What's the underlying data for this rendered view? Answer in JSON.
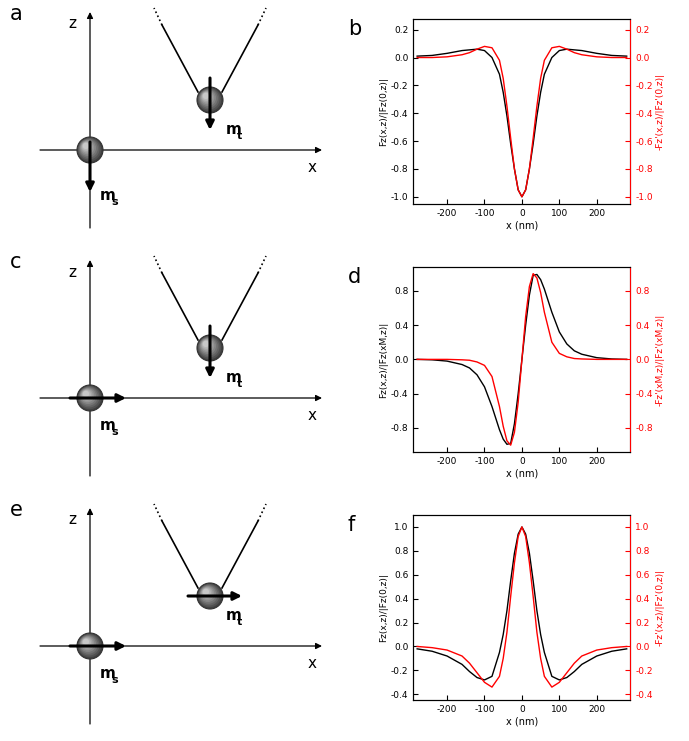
{
  "diagrams": [
    {
      "label": "a",
      "z_label": "z",
      "x_label": "x",
      "sample": {
        "label": "m",
        "subscript": "s",
        "direction": "down"
      },
      "tip": {
        "label": "m",
        "subscript": "t",
        "direction": "down"
      }
    },
    {
      "label": "c",
      "z_label": "z",
      "x_label": "x",
      "sample": {
        "label": "m",
        "subscript": "s",
        "direction": "right"
      },
      "tip": {
        "label": "m",
        "subscript": "t",
        "direction": "down"
      }
    },
    {
      "label": "e",
      "z_label": "z",
      "x_label": "x",
      "sample": {
        "label": "m",
        "subscript": "s",
        "direction": "right"
      },
      "tip": {
        "label": "m",
        "subscript": "t",
        "direction": "right"
      }
    }
  ],
  "chart_data": [
    {
      "type": "line",
      "panel_label": "b",
      "xlabel": "x (nm)",
      "ylabel": "Fz(x,z)/|Fz(0,z)|",
      "y2label": "-Fz'(x,z)/|Fz'(0,z)|",
      "xlim": [
        -290,
        290
      ],
      "xticks": [
        -200,
        -100,
        0,
        100,
        200
      ],
      "ylim": [
        -1.05,
        0.28
      ],
      "yticks": [
        -1.0,
        -0.8,
        -0.6,
        -0.4,
        -0.2,
        0.0,
        0.2
      ],
      "y2lim": [
        -1.05,
        0.28
      ],
      "y2ticks": [
        -1.0,
        -0.8,
        -0.6,
        -0.4,
        -0.2,
        0.0,
        0.2
      ],
      "x": [
        -280,
        -240,
        -200,
        -160,
        -140,
        -120,
        -100,
        -80,
        -60,
        -50,
        -40,
        -30,
        -20,
        -10,
        0,
        10,
        20,
        30,
        40,
        50,
        60,
        80,
        100,
        120,
        140,
        160,
        200,
        240,
        280
      ],
      "series": [
        {
          "color": "#000000",
          "values": [
            0.01,
            0.015,
            0.03,
            0.05,
            0.055,
            0.06,
            0.05,
            0.0,
            -0.12,
            -0.25,
            -0.42,
            -0.62,
            -0.8,
            -0.95,
            -1.0,
            -0.95,
            -0.8,
            -0.62,
            -0.42,
            -0.25,
            -0.12,
            0.0,
            0.05,
            0.06,
            0.055,
            0.05,
            0.03,
            0.015,
            0.01
          ]
        },
        {
          "color": "#ff0000",
          "axis": "y2",
          "values": [
            0.0,
            0.0,
            0.005,
            0.02,
            0.035,
            0.06,
            0.08,
            0.07,
            -0.02,
            -0.15,
            -0.35,
            -0.58,
            -0.8,
            -0.95,
            -1.0,
            -0.95,
            -0.8,
            -0.58,
            -0.35,
            -0.15,
            -0.02,
            0.07,
            0.08,
            0.06,
            0.035,
            0.02,
            0.005,
            0.0,
            0.0
          ]
        }
      ]
    },
    {
      "type": "line",
      "panel_label": "d",
      "xlabel": "x (nm)",
      "ylabel": "Fz(x,z)/|Fz(xM,z)|",
      "y2label": "-Fz'(xM,z)/|Fz'(xM,z)|",
      "xlim": [
        -290,
        290
      ],
      "xticks": [
        -200,
        -100,
        0,
        100,
        200
      ],
      "ylim": [
        -1.08,
        1.08
      ],
      "yticks": [
        -0.8,
        -0.4,
        0.0,
        0.4,
        0.8
      ],
      "y2lim": [
        -1.08,
        1.08
      ],
      "y2ticks": [
        -0.8,
        -0.4,
        0.0,
        0.4,
        0.8
      ],
      "x": [
        -280,
        -240,
        -200,
        -160,
        -140,
        -120,
        -100,
        -80,
        -60,
        -50,
        -40,
        -30,
        -20,
        -10,
        0,
        10,
        20,
        30,
        40,
        50,
        60,
        80,
        100,
        120,
        140,
        160,
        200,
        240,
        280
      ],
      "series": [
        {
          "color": "#000000",
          "values": [
            0.0,
            -0.005,
            -0.02,
            -0.06,
            -0.1,
            -0.18,
            -0.32,
            -0.55,
            -0.82,
            -0.93,
            -0.99,
            -0.98,
            -0.75,
            -0.4,
            0.0,
            0.4,
            0.75,
            0.98,
            0.99,
            0.93,
            0.82,
            0.55,
            0.32,
            0.18,
            0.1,
            0.06,
            0.02,
            0.005,
            0.0
          ]
        },
        {
          "color": "#ff0000",
          "axis": "y2",
          "values": [
            0.0,
            0.0,
            0.0,
            -0.005,
            -0.01,
            -0.03,
            -0.07,
            -0.2,
            -0.55,
            -0.78,
            -0.95,
            -1.0,
            -0.85,
            -0.5,
            0.0,
            0.5,
            0.85,
            1.0,
            0.95,
            0.78,
            0.55,
            0.2,
            0.07,
            0.03,
            0.01,
            0.005,
            0.0,
            0.0,
            0.0
          ]
        }
      ]
    },
    {
      "type": "line",
      "panel_label": "f",
      "xlabel": "x (nm)",
      "ylabel": "Fz(x,z)/|Fz(0,z)|",
      "y2label": "-Fz'(x,z)/|Fz'(0,z)|",
      "xlim": [
        -290,
        290
      ],
      "xticks": [
        -200,
        -100,
        0,
        100,
        200
      ],
      "ylim": [
        -0.45,
        1.1
      ],
      "yticks": [
        -0.4,
        -0.2,
        0.0,
        0.2,
        0.4,
        0.6,
        0.8,
        1.0
      ],
      "y2lim": [
        -0.45,
        1.1
      ],
      "y2ticks": [
        -0.4,
        -0.2,
        0.0,
        0.2,
        0.4,
        0.6,
        0.8,
        1.0
      ],
      "x": [
        -280,
        -240,
        -200,
        -160,
        -140,
        -120,
        -100,
        -80,
        -60,
        -50,
        -40,
        -30,
        -20,
        -10,
        0,
        10,
        20,
        30,
        40,
        50,
        60,
        80,
        100,
        120,
        140,
        160,
        200,
        240,
        280
      ],
      "series": [
        {
          "color": "#000000",
          "values": [
            -0.02,
            -0.04,
            -0.08,
            -0.15,
            -0.21,
            -0.26,
            -0.28,
            -0.25,
            -0.05,
            0.1,
            0.3,
            0.55,
            0.78,
            0.94,
            1.0,
            0.94,
            0.78,
            0.55,
            0.3,
            0.1,
            -0.05,
            -0.25,
            -0.28,
            -0.26,
            -0.21,
            -0.15,
            -0.08,
            -0.04,
            -0.02
          ]
        },
        {
          "color": "#ff0000",
          "axis": "y2",
          "values": [
            0.0,
            -0.01,
            -0.03,
            -0.08,
            -0.14,
            -0.22,
            -0.3,
            -0.34,
            -0.25,
            -0.1,
            0.12,
            0.42,
            0.7,
            0.92,
            1.0,
            0.92,
            0.7,
            0.42,
            0.12,
            -0.1,
            -0.25,
            -0.34,
            -0.3,
            -0.22,
            -0.14,
            -0.08,
            -0.03,
            -0.01,
            0.0
          ]
        }
      ]
    }
  ]
}
